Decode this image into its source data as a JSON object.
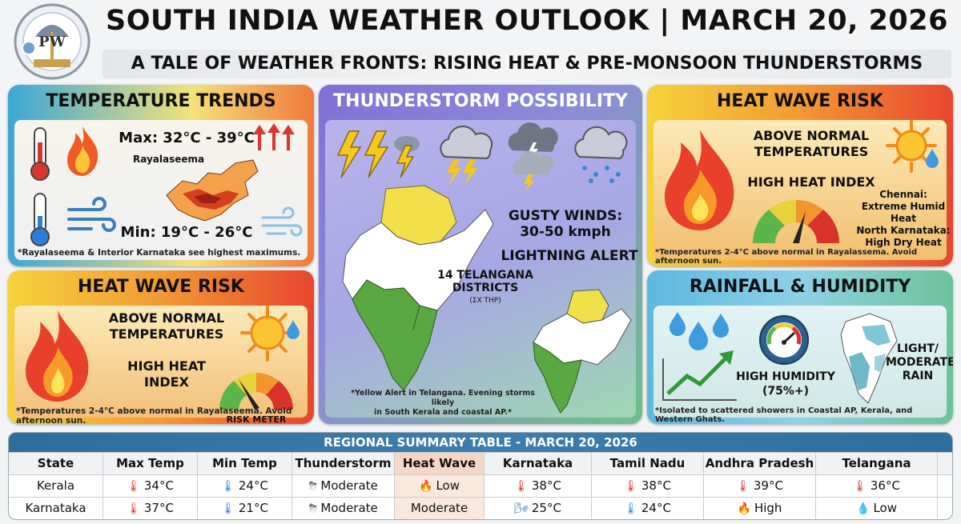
{
  "header": {
    "title": "SOUTH INDIA WEATHER OUTLOOK | MARCH 20, 2026",
    "subtitle": "A TALE OF WEATHER FRONTS: RISING HEAT & PRE-MONSOON THUNDERSTORMS",
    "logo_text": "PW"
  },
  "temperature_trends": {
    "title": "TEMPERATURE TRENDS",
    "max": "Max: 32°C - 39°C",
    "min": "Min: 19°C - 26°C",
    "region_label": "Rayalaseema",
    "note": "*Rayalaseema & Interior Karnataka see highest maximums."
  },
  "heat_wave_left": {
    "title": "HEAT WAVE RISK",
    "line1": "ABOVE NORMAL",
    "line2": "TEMPERATURES",
    "line3": "HIGH HEAT",
    "line4": "INDEX",
    "meter_label": "RISK METER",
    "note": "*Temperatures 2-4°C above normal in Rayalaseema. Avoid afternoon sun."
  },
  "thunderstorm": {
    "title": "THUNDERSTORM POSSIBILITY",
    "winds_label": "GUSTY WINDS:",
    "winds_value": "30-50 kmph",
    "lightning": "LIGHTNING ALERT",
    "districts_line1": "14 TELANGANA",
    "districts_line2": "DISTRICTS",
    "districts_sub": "(ƩX THP)",
    "note_line1": "*Yellow Alert in Telangana. Evening storms likely",
    "note_line2": "in South Kerala and coastal AP.*"
  },
  "heat_wave_right": {
    "title": "HEAT WAVE RISK",
    "line1": "ABOVE NORMAL",
    "line2": "TEMPERATURES",
    "line3": "HIGH HEAT INDEX",
    "chennai_label": "Chennai:",
    "chennai_value": "Extreme Humid Heat",
    "karnataka_label": "North Karnataka:",
    "karnataka_value": "High Dry Heat",
    "note": "*Temperatures 2-4°C above normal in Rayalassema. Avoid afternoon sun."
  },
  "rainfall": {
    "title": "RAINFALL & HUMIDITY",
    "humidity_line1": "HIGH HUMIDITY",
    "humidity_line2": "(75%+)",
    "rain_line1": "LIGHT/",
    "rain_line2": "MODERATE",
    "rain_line3": "RAIN",
    "note": "*Isolated to scattered showers in Coastal AP, Kerala, and Western Ghats."
  },
  "table": {
    "title": "REGIONAL SUMMARY TABLE - MARCH 20, 2026",
    "headers": [
      "State",
      "Max Temp",
      "Min Temp",
      "Thunderstorm",
      "Heat Wave",
      "Karnataka",
      "Tamil Nadu",
      "Andhra Pradesh",
      "Telangana"
    ],
    "rows": [
      {
        "cells": [
          "Kerala",
          "34°C",
          "24°C",
          "Moderate",
          "Low",
          "38°C",
          "38°C",
          "39°C",
          "36°C"
        ],
        "icons": [
          "",
          "thermometer-hot-icon",
          "thermometer-cold-icon",
          "storm-cloud-icon",
          "fire-icon",
          "thermometer-hot-icon",
          "thermometer-hot-icon",
          "thermometer-hot-icon",
          "thermometer-hot-icon"
        ]
      },
      {
        "cells": [
          "Karnataka",
          "37°C",
          "21°C",
          "Moderate",
          "Moderate",
          "25°C",
          "24°C",
          "High",
          "Low"
        ],
        "icons": [
          "",
          "thermometer-hot-icon",
          "thermometer-cold-icon",
          "storm-cloud-icon",
          "",
          "wind-thermometer-icon",
          "thermometer-cold-icon",
          "fire-icon",
          "droplet-icon"
        ]
      }
    ]
  }
}
